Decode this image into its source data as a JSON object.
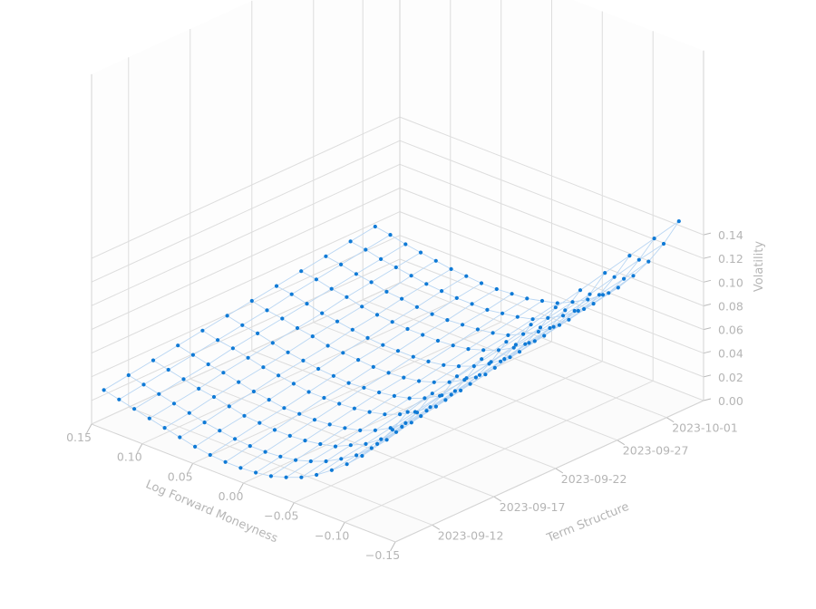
{
  "chart_data": {
    "type": "scatter3d",
    "xlabel": "Log Forward Moneyness",
    "ylabel": "Term Structure",
    "zlabel": "Volatility",
    "x_ticks": [
      "−0.15",
      "−0.10",
      "−0.05",
      "0.00",
      "0.05",
      "0.10",
      "0.15"
    ],
    "y_ticks": [
      "2023-09-12",
      "2023-09-17",
      "2023-09-22",
      "2023-09-27",
      "2023-10-01"
    ],
    "z_ticks": [
      "0.00",
      "0.02",
      "0.04",
      "0.06",
      "0.08",
      "0.10",
      "0.12",
      "0.14"
    ],
    "xlim": [
      -0.15,
      0.15
    ],
    "ylim": [
      "2023-09-09",
      "2023-10-04"
    ],
    "zlim": [
      0.0,
      0.15
    ],
    "grid": true,
    "marker_color": "#0f7ad6",
    "wire_color": "#b9d6f3",
    "x": [
      -0.15,
      -0.135,
      -0.12,
      -0.105,
      -0.09,
      -0.075,
      -0.06,
      -0.045,
      -0.03,
      -0.015,
      0.0,
      0.015,
      0.03,
      0.045,
      0.06,
      0.075,
      0.09,
      0.105,
      0.12,
      0.135,
      0.15
    ],
    "y": [
      "2023-09-10",
      "2023-09-12",
      "2023-09-14",
      "2023-09-16",
      "2023-09-18",
      "2023-09-20",
      "2023-09-22",
      "2023-09-24",
      "2023-09-26",
      "2023-09-28",
      "2023-09-30",
      "2023-10-02"
    ],
    "z": [
      [
        0.105,
        0.085,
        0.068,
        0.053,
        0.041,
        0.031,
        0.022,
        0.015,
        0.01,
        0.006,
        0.004,
        0.003,
        0.003,
        0.004,
        0.006,
        0.009,
        0.012,
        0.015,
        0.018,
        0.021,
        0.024
      ],
      [
        0.111,
        0.09,
        0.073,
        0.057,
        0.045,
        0.034,
        0.026,
        0.019,
        0.014,
        0.01,
        0.008,
        0.007,
        0.007,
        0.008,
        0.01,
        0.012,
        0.015,
        0.018,
        0.021,
        0.024,
        0.027
      ],
      [
        0.116,
        0.095,
        0.077,
        0.062,
        0.049,
        0.038,
        0.029,
        0.023,
        0.017,
        0.014,
        0.012,
        0.011,
        0.011,
        0.012,
        0.013,
        0.016,
        0.019,
        0.021,
        0.024,
        0.027,
        0.03
      ],
      [
        0.121,
        0.1,
        0.081,
        0.066,
        0.053,
        0.042,
        0.033,
        0.026,
        0.021,
        0.018,
        0.016,
        0.015,
        0.015,
        0.015,
        0.017,
        0.019,
        0.022,
        0.025,
        0.027,
        0.03,
        0.033
      ],
      [
        0.126,
        0.104,
        0.086,
        0.07,
        0.057,
        0.046,
        0.037,
        0.03,
        0.025,
        0.022,
        0.02,
        0.019,
        0.019,
        0.019,
        0.021,
        0.023,
        0.025,
        0.028,
        0.031,
        0.033,
        0.036
      ],
      [
        0.131,
        0.109,
        0.09,
        0.074,
        0.061,
        0.05,
        0.041,
        0.034,
        0.029,
        0.026,
        0.024,
        0.023,
        0.022,
        0.023,
        0.024,
        0.026,
        0.028,
        0.031,
        0.034,
        0.036,
        0.039
      ],
      [
        0.136,
        0.114,
        0.095,
        0.079,
        0.065,
        0.054,
        0.045,
        0.038,
        0.033,
        0.029,
        0.027,
        0.026,
        0.026,
        0.027,
        0.028,
        0.029,
        0.032,
        0.034,
        0.037,
        0.039,
        0.042
      ],
      [
        0.141,
        0.119,
        0.099,
        0.083,
        0.069,
        0.058,
        0.049,
        0.042,
        0.037,
        0.033,
        0.031,
        0.03,
        0.03,
        0.03,
        0.031,
        0.033,
        0.035,
        0.037,
        0.04,
        0.043,
        0.045
      ],
      [
        0.146,
        0.123,
        0.104,
        0.087,
        0.073,
        0.062,
        0.053,
        0.046,
        0.041,
        0.037,
        0.035,
        0.034,
        0.034,
        0.034,
        0.035,
        0.036,
        0.038,
        0.041,
        0.043,
        0.046,
        0.048
      ],
      [
        0.151,
        0.128,
        0.108,
        0.091,
        0.077,
        0.066,
        0.057,
        0.05,
        0.044,
        0.041,
        0.039,
        0.038,
        0.037,
        0.037,
        0.038,
        0.04,
        0.041,
        0.044,
        0.046,
        0.049,
        0.051
      ],
      [
        0.156,
        0.133,
        0.112,
        0.095,
        0.081,
        0.07,
        0.061,
        0.054,
        0.048,
        0.045,
        0.043,
        0.041,
        0.041,
        0.041,
        0.042,
        0.043,
        0.045,
        0.047,
        0.049,
        0.052,
        0.054
      ],
      [
        0.161,
        0.137,
        0.117,
        0.1,
        0.085,
        0.074,
        0.065,
        0.058,
        0.052,
        0.049,
        0.046,
        0.045,
        0.044,
        0.044,
        0.045,
        0.046,
        0.048,
        0.05,
        0.052,
        0.055,
        0.057
      ]
    ]
  }
}
